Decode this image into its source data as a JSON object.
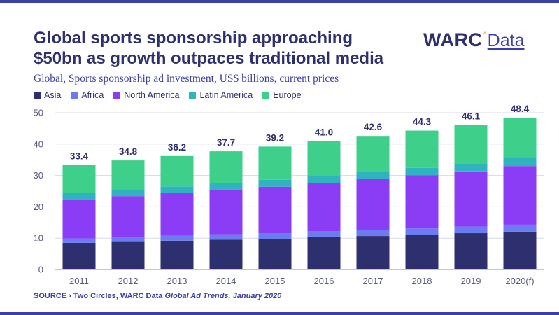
{
  "header": {
    "title_line1": "Global sports sponsorship approaching",
    "title_line2": "$50bn as growth outpaces traditional media",
    "subtitle": "Global, Sports sponsorship ad investment, US$ billions, current prices"
  },
  "logo": {
    "brand": "WARC",
    "product": "Data",
    "caret": "^"
  },
  "legend": [
    {
      "label": "Asia",
      "color": "#2e2f6f"
    },
    {
      "label": "Africa",
      "color": "#6b7cf0"
    },
    {
      "label": "North America",
      "color": "#8b3df5"
    },
    {
      "label": "Latin America",
      "color": "#2fb3bf"
    },
    {
      "label": "Europe",
      "color": "#3ecf8a"
    }
  ],
  "source": {
    "label": "SOURCE",
    "separator": "›",
    "text": "Two Circles, WARC Data",
    "publication": "Global Ad Trends, January 2020"
  },
  "chart_data": {
    "type": "bar",
    "stacked": true,
    "categories": [
      "2011",
      "2012",
      "2013",
      "2014",
      "2015",
      "2016",
      "2017",
      "2018",
      "2019",
      "2020(f)"
    ],
    "series": [
      {
        "name": "Asia",
        "color": "#2e2f6f",
        "values": [
          8.5,
          8.8,
          9.2,
          9.5,
          9.8,
          10.3,
          10.7,
          11.1,
          11.6,
          12.1
        ]
      },
      {
        "name": "Africa",
        "color": "#6b7cf0",
        "values": [
          1.4,
          1.5,
          1.6,
          1.7,
          1.8,
          1.9,
          2.0,
          2.0,
          2.1,
          2.2
        ]
      },
      {
        "name": "North America",
        "color": "#8b3df5",
        "values": [
          12.5,
          13.1,
          13.6,
          14.2,
          14.8,
          15.4,
          16.1,
          17.0,
          17.6,
          18.7
        ]
      },
      {
        "name": "Latin America",
        "color": "#2fb3bf",
        "values": [
          2.1,
          2.0,
          2.1,
          2.2,
          2.2,
          2.3,
          2.3,
          2.3,
          2.4,
          2.5
        ]
      },
      {
        "name": "Europe",
        "color": "#3ecf8a",
        "values": [
          8.9,
          9.4,
          9.7,
          10.1,
          10.6,
          11.1,
          11.5,
          11.9,
          12.4,
          12.9
        ]
      }
    ],
    "totals": [
      "33.4",
      "34.8",
      "36.2",
      "37.7",
      "39.2",
      "41.0",
      "42.6",
      "44.3",
      "46.1",
      "48.4"
    ],
    "yticks": [
      "0",
      "10",
      "20",
      "30",
      "40",
      "50"
    ],
    "ylim": [
      0,
      50
    ],
    "grid": true,
    "legend_position": "top-left"
  }
}
